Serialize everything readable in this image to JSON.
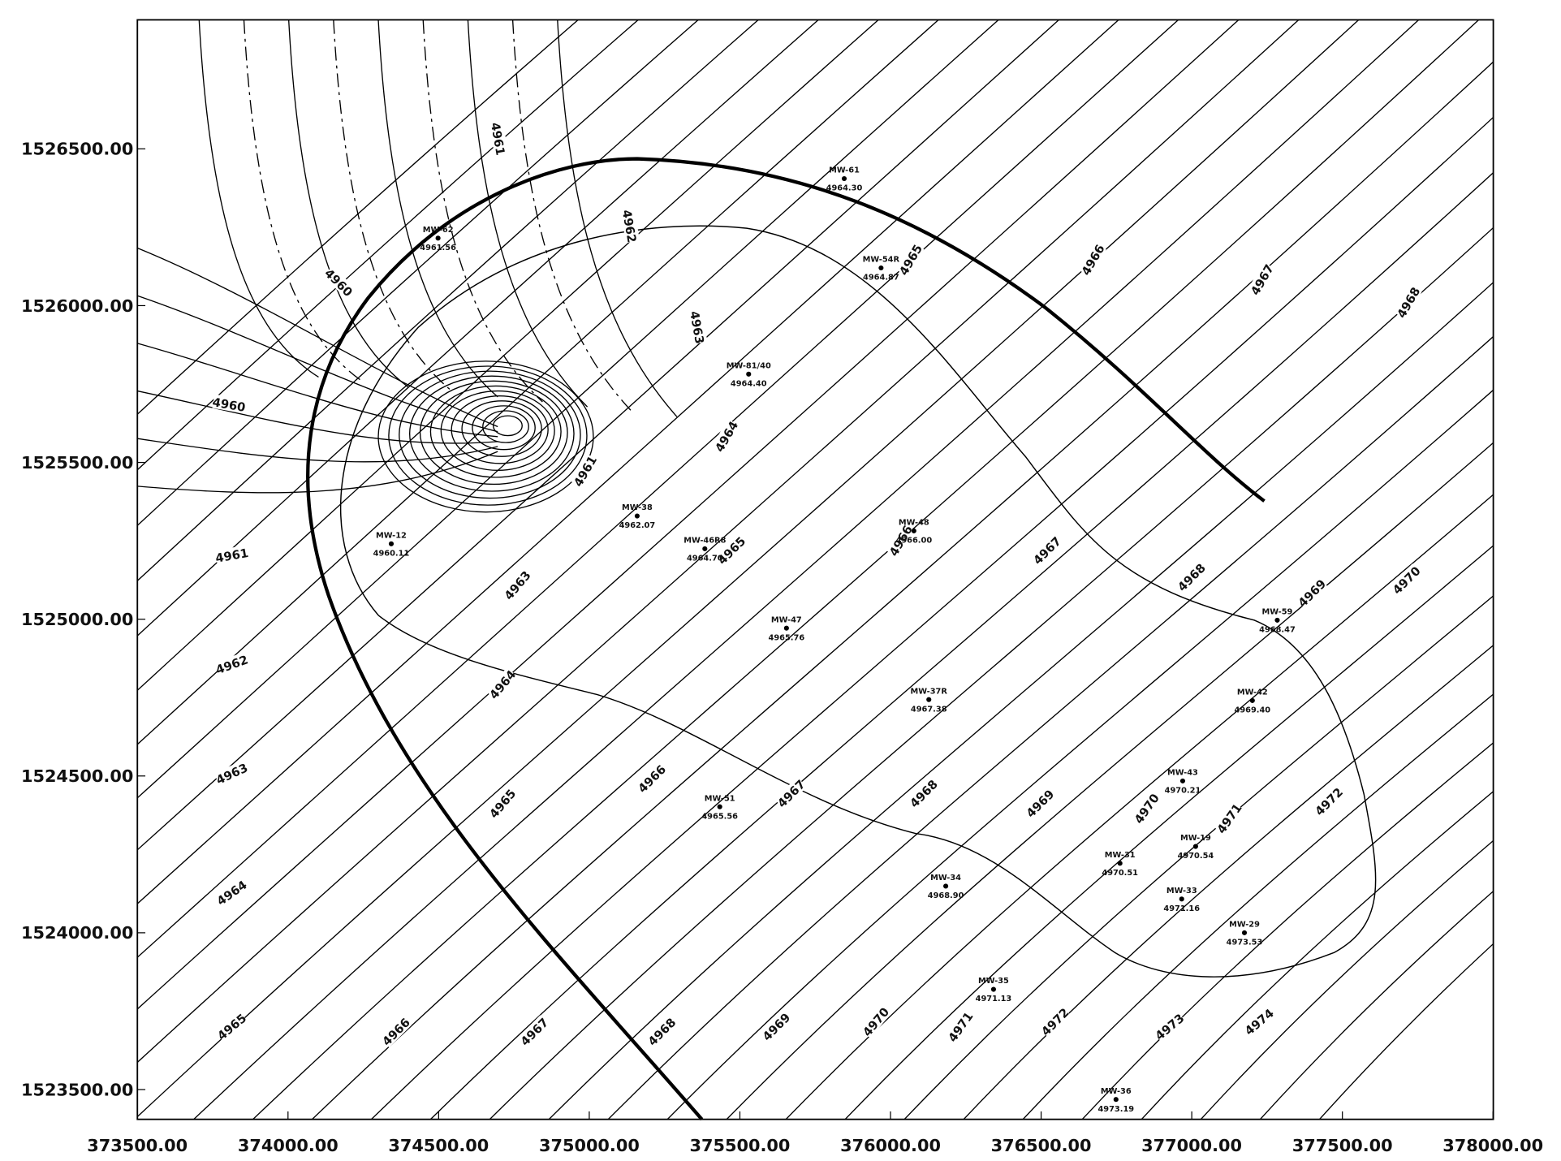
{
  "x_axis": {
    "ticks": [
      "373500.00",
      "374000.00",
      "374500.00",
      "375000.00",
      "375500.00",
      "376000.00",
      "376500.00",
      "377000.00",
      "377500.00",
      "378000.00"
    ]
  },
  "y_axis": {
    "ticks": [
      "1526500.00",
      "1526000.00",
      "1525500.00",
      "1525000.00",
      "1524500.00",
      "1524000.00",
      "1523500.00"
    ]
  },
  "contour_labels": [
    "4961",
    "4962",
    "4963",
    "4960",
    "4960",
    "4961",
    "4962",
    "4963",
    "4964",
    "4965",
    "4966",
    "4967",
    "4968",
    "4969",
    "4970",
    "4971",
    "4972",
    "4973",
    "4974",
    "4964",
    "4965",
    "4966",
    "4967",
    "4968",
    "4969",
    "4970",
    "4971",
    "4972",
    "4963",
    "4961",
    "4964",
    "4965",
    "4966",
    "4965",
    "4966",
    "4967",
    "4968",
    "4967",
    "4968",
    "4969",
    "4970"
  ],
  "wells": [
    {
      "name": "MW-61",
      "value": "4964.30"
    },
    {
      "name": "MW-62",
      "value": "4961.56"
    },
    {
      "name": "MW-54R",
      "value": "4964.87"
    },
    {
      "name": "MW-81/40",
      "value": "4964.40"
    },
    {
      "name": "MW-12",
      "value": "4960.11"
    },
    {
      "name": "MW-38",
      "value": "4962.07"
    },
    {
      "name": "MW-46R8",
      "value": "4964.70"
    },
    {
      "name": "MW-48",
      "value": "4966.00"
    },
    {
      "name": "MW-47",
      "value": "4965.76"
    },
    {
      "name": "MW-37R",
      "value": "4967.38"
    },
    {
      "name": "MW-59",
      "value": "4968.47"
    },
    {
      "name": "MW-42",
      "value": "4969.40"
    },
    {
      "name": "MW-43",
      "value": "4970.21"
    },
    {
      "name": "MW-51",
      "value": "4965.56"
    },
    {
      "name": "MW-31",
      "value": "4970.51"
    },
    {
      "name": "MW-19",
      "value": "4970.54"
    },
    {
      "name": "MW-33",
      "value": "4971.16"
    },
    {
      "name": "MW-34",
      "value": "4968.90"
    },
    {
      "name": "MW-29",
      "value": "4973.53"
    },
    {
      "name": "MW-35",
      "value": "4971.13"
    },
    {
      "name": "MW-36",
      "value": "4973.19"
    }
  ]
}
